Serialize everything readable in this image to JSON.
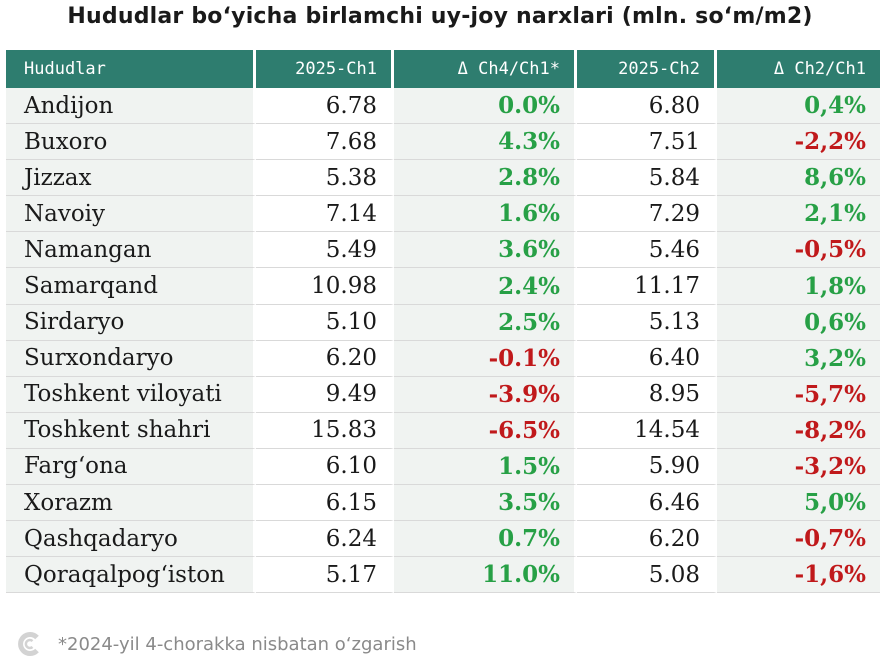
{
  "title": "Hududlar bo‘yicha birlamchi uy-joy narxlari (mln. so‘m/m2)",
  "footnote": "*2024-yil 4-chorakka nisbatan o‘zgarish",
  "logo_icon": "c-logo-icon",
  "colors": {
    "header_bg": "#2e7d6f",
    "positive": "#27a046",
    "negative": "#c0191b",
    "stripe": "#f0f3f1"
  },
  "chart_data": {
    "type": "table",
    "title": "Hududlar bo‘yicha birlamchi uy-joy narxlari (mln. so‘m/m2)",
    "columns": [
      "Hududlar",
      "2025-Ch1",
      "Δ Ch4/Ch1*",
      "2025-Ch2",
      "Δ Ch2/Ch1"
    ],
    "rows": [
      [
        "Andijon",
        "6.78",
        "0.0%",
        "6.80",
        "0,4%"
      ],
      [
        "Buxoro",
        "7.68",
        "4.3%",
        "7.51",
        "-2,2%"
      ],
      [
        "Jizzax",
        "5.38",
        "2.8%",
        "5.84",
        "8,6%"
      ],
      [
        "Navoiy",
        "7.14",
        "1.6%",
        "7.29",
        "2,1%"
      ],
      [
        "Namangan",
        "5.49",
        "3.6%",
        "5.46",
        "-0,5%"
      ],
      [
        "Samarqand",
        "10.98",
        "2.4%",
        "11.17",
        "1,8%"
      ],
      [
        "Sirdaryo",
        "5.10",
        "2.5%",
        "5.13",
        "0,6%"
      ],
      [
        "Surxondaryo",
        "6.20",
        "-0.1%",
        "6.40",
        "3,2%"
      ],
      [
        "Toshkent viloyati",
        "9.49",
        "-3.9%",
        "8.95",
        "-5,7%"
      ],
      [
        "Toshkent shahri",
        "15.83",
        "-6.5%",
        "14.54",
        "-8,2%"
      ],
      [
        "Farg‘ona",
        "6.10",
        "1.5%",
        "5.90",
        "-3,2%"
      ],
      [
        "Xorazm",
        "6.15",
        "3.5%",
        "6.46",
        "5,0%"
      ],
      [
        "Qashqadaryo",
        "6.24",
        "0.7%",
        "6.20",
        "-0,7%"
      ],
      [
        "Qoraqalpog‘iston",
        "5.17",
        "11.0%",
        "5.08",
        "-1,6%"
      ]
    ]
  }
}
